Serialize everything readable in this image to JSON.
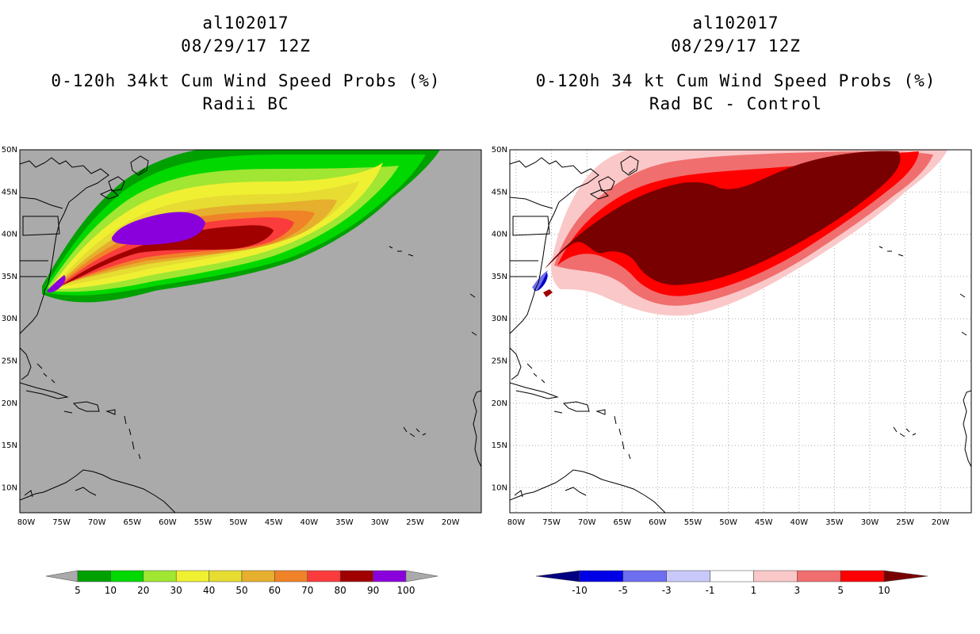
{
  "left": {
    "storm_id": "al102017",
    "date": "08/29/17 12Z",
    "title": "0-120h 34kt Cum Wind Speed Probs (%)",
    "subtitle": "Radii BC",
    "legend": [
      {
        "label": "5",
        "color": "#00a000"
      },
      {
        "label": "10",
        "color": "#00d800"
      },
      {
        "label": "20",
        "color": "#a0e632"
      },
      {
        "label": "30",
        "color": "#f0f032"
      },
      {
        "label": "40",
        "color": "#e6dc32"
      },
      {
        "label": "50",
        "color": "#e6af2d"
      },
      {
        "label": "60",
        "color": "#f08228"
      },
      {
        "label": "70",
        "color": "#fa3c3c"
      },
      {
        "label": "80",
        "color": "#a00000"
      },
      {
        "label": "90",
        "color": "#8a00dc"
      },
      {
        "label": "100",
        "color": "#aaaaaa"
      }
    ]
  },
  "right": {
    "storm_id": "al102017",
    "date": "08/29/17 12Z",
    "title": "0-120h 34 kt Cum Wind Speed Probs (%)",
    "subtitle": "Rad BC - Control",
    "legend": [
      {
        "label": "-10",
        "color": "#0000c8"
      },
      {
        "label": "-5",
        "color": "#6e6ef0"
      },
      {
        "label": "-3",
        "color": "#c8c8fa"
      },
      {
        "label": "-1",
        "color": "#ffffff"
      },
      {
        "label": "1",
        "color": "#fac8c8"
      },
      {
        "label": "3",
        "color": "#f06e6e"
      },
      {
        "label": "5",
        "color": "#ff0000"
      },
      {
        "label": "10",
        "color": "#780000"
      }
    ]
  },
  "lat_labels": [
    "50N",
    "45N",
    "40N",
    "35N",
    "30N",
    "25N",
    "20N",
    "15N",
    "10N"
  ],
  "lon_labels": [
    "80W",
    "75W",
    "70W",
    "65W",
    "60W",
    "55W",
    "50W",
    "45W",
    "40W",
    "35W",
    "30W",
    "25W",
    "20W"
  ]
}
